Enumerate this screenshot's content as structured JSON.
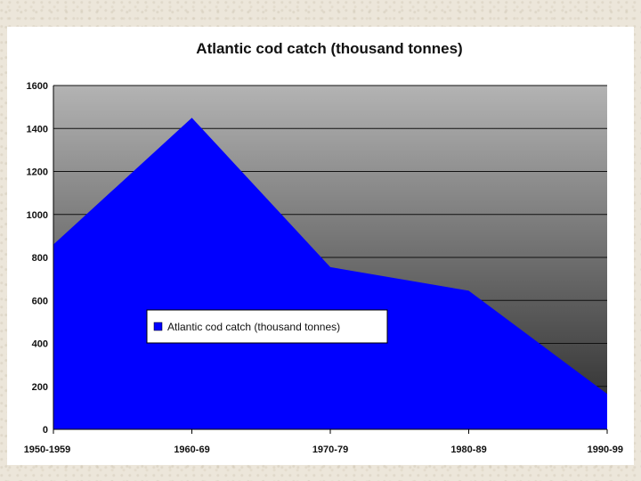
{
  "chart_data": {
    "type": "area",
    "title": "Atlantic cod catch (thousand tonnes)",
    "categories": [
      "1950-1959",
      "1960-69",
      "1970-79",
      "1980-89",
      "1990-99"
    ],
    "series": [
      {
        "name": "Atlantic cod catch (thousand tonnes)",
        "values": [
          860,
          1450,
          755,
          645,
          165
        ]
      }
    ],
    "xlabel": "",
    "ylabel": "",
    "ylim": [
      0,
      1600
    ],
    "yticks": [
      "0",
      "200",
      "400",
      "600",
      "800",
      "1000",
      "1200",
      "1400",
      "1600"
    ],
    "grid": true,
    "legend_position": "center-left",
    "colors": {
      "series": "#0000ff",
      "plot_top": "#b3b3b3",
      "plot_bottom": "#2a2a2a",
      "grid": "#111111"
    }
  }
}
